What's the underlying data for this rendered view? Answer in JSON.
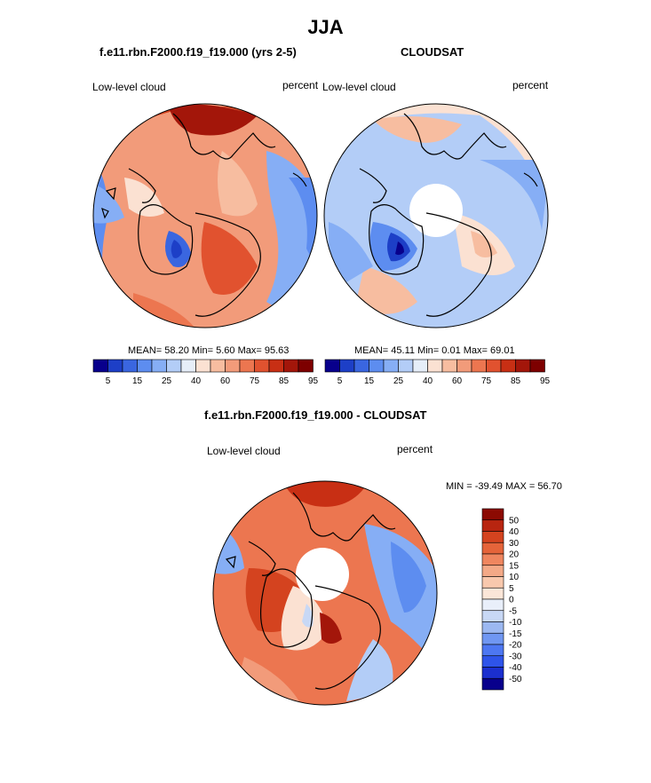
{
  "title": "JJA",
  "panels": [
    {
      "subtitle": "f.e11.rbn.F2000.f19_f19.000 (yrs 2-5)",
      "left_label": "Low-level cloud",
      "right_label": "percent",
      "stats": {
        "mean_label": "MEAN=",
        "mean": "58.20",
        "min_label": "Min=",
        "min": "5.60",
        "max_label": "Max=",
        "max": "95.63"
      }
    },
    {
      "subtitle": "CLOUDSAT",
      "left_label": "Low-level cloud",
      "right_label": "percent",
      "stats": {
        "mean_label": "MEAN=",
        "mean": "45.11",
        "min_label": "Min=",
        "min": "0.01",
        "max_label": "Max=",
        "max": "69.01"
      }
    },
    {
      "subtitle": "f.e11.rbn.F2000.f19_f19.000 - CLOUDSAT",
      "left_label": "Low-level cloud",
      "right_label": "percent",
      "minmax": "MIN = -39.49 MAX =  56.70"
    }
  ],
  "colorbar_abs": {
    "colors": [
      "#08008c",
      "#1d3fc7",
      "#3a66e0",
      "#5d8df0",
      "#86aef5",
      "#b3cdf7",
      "#e6eef8",
      "#fbe1d2",
      "#f7bda0",
      "#f29b7a",
      "#ec7650",
      "#e1522f",
      "#c82f14",
      "#a3160a",
      "#7d0000"
    ],
    "tick_labels": [
      "5",
      "15",
      "25",
      "40",
      "60",
      "75",
      "85",
      "95"
    ]
  },
  "colorbar_diff": {
    "colors": [
      "#08008c",
      "#1b2fcf",
      "#2e54ea",
      "#4d77f2",
      "#7097f2",
      "#9cb8f1",
      "#c8d8f5",
      "#e9effa",
      "#fbe6d8",
      "#f8c8ad",
      "#f3a987",
      "#ef865f",
      "#e5643a",
      "#d4431f",
      "#b82510",
      "#8c0a02"
    ],
    "tick_labels": [
      "50",
      "40",
      "30",
      "20",
      "15",
      "10",
      "5",
      "0",
      "-5",
      "-10",
      "-15",
      "-20",
      "-30",
      "-40",
      "-50"
    ]
  }
}
